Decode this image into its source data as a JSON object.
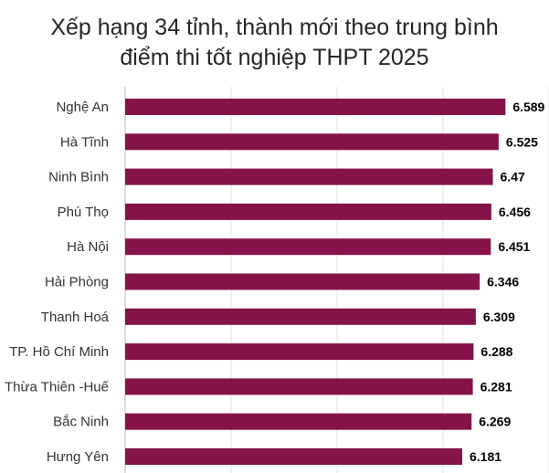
{
  "chart_data": {
    "type": "bar",
    "orientation": "horizontal",
    "title_lines": [
      "Xếp hạng 34 tỉnh, thành mới theo trung bình",
      "điểm thi tốt nghiệp THPT 2025"
    ],
    "categories": [
      "Nghệ An",
      "Hà Tĩnh",
      "Ninh Bình",
      "Phú Thọ",
      "Hà Nội",
      "Hải Phòng",
      "Thanh Hoá",
      "TP. Hồ Chí Minh",
      "Thừa Thiên -Huế",
      "Bắc Ninh",
      "Hưng Yên"
    ],
    "values": [
      6.589,
      6.525,
      6.47,
      6.456,
      6.451,
      6.346,
      6.309,
      6.288,
      6.281,
      6.269,
      6.181
    ],
    "value_labels": [
      "6.589",
      "6.525",
      "6.47",
      "6.456",
      "6.451",
      "6.346",
      "6.309",
      "6.288",
      "6.281",
      "6.269",
      "6.181"
    ],
    "xlim": [
      3,
      7
    ],
    "grid": true,
    "bar_color": "#85134a"
  }
}
